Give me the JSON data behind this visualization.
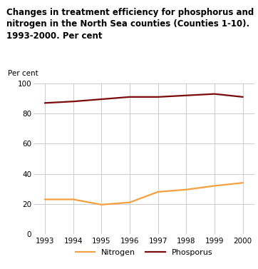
{
  "title_line1": "Changes in treatment efficiency for phosphorus and",
  "title_line2": "nitrogen in the North Sea counties (Counties 1-10).",
  "title_line3": "1993-2000. Per cent",
  "ylabel": "Per cent",
  "years": [
    1993,
    1994,
    1995,
    1996,
    1997,
    1998,
    1999,
    2000
  ],
  "nitrogen": [
    23,
    23,
    19.5,
    21,
    28,
    29.5,
    32,
    34
  ],
  "phosphorus": [
    87,
    88,
    89.5,
    91,
    91,
    92,
    93,
    91
  ],
  "nitrogen_color": "#F5A03C",
  "phosphorus_color": "#7B0A0A",
  "ylim": [
    0,
    100
  ],
  "yticks": [
    0,
    20,
    40,
    60,
    80,
    100
  ],
  "background_color": "#ffffff",
  "grid_color": "#cccccc",
  "title_fontsize": 8.5,
  "axis_label_fontsize": 7.5,
  "tick_fontsize": 7.5,
  "legend_fontsize": 8,
  "line_width": 1.6,
  "title_color": "#000000",
  "header_bar_color": "#4AABB8",
  "bottom_bar_color": "#4AABB8"
}
